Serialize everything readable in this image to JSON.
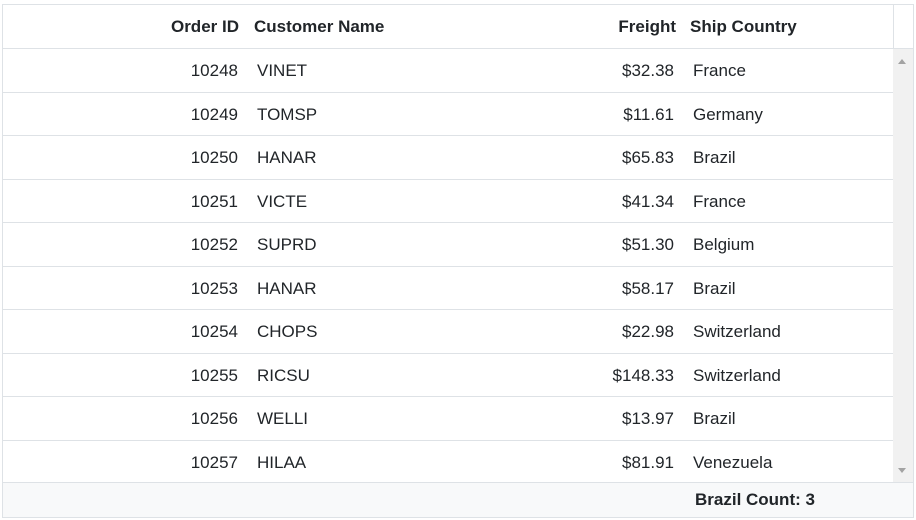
{
  "grid": {
    "columns": {
      "order_id": "Order ID",
      "customer_name": "Customer Name",
      "freight": "Freight",
      "ship_country": "Ship Country"
    },
    "rows": [
      {
        "order_id": "10248",
        "customer": "VINET",
        "freight": "$32.38",
        "country": "France"
      },
      {
        "order_id": "10249",
        "customer": "TOMSP",
        "freight": "$11.61",
        "country": "Germany"
      },
      {
        "order_id": "10250",
        "customer": "HANAR",
        "freight": "$65.83",
        "country": "Brazil"
      },
      {
        "order_id": "10251",
        "customer": "VICTE",
        "freight": "$41.34",
        "country": "France"
      },
      {
        "order_id": "10252",
        "customer": "SUPRD",
        "freight": "$51.30",
        "country": "Belgium"
      },
      {
        "order_id": "10253",
        "customer": "HANAR",
        "freight": "$58.17",
        "country": "Brazil"
      },
      {
        "order_id": "10254",
        "customer": "CHOPS",
        "freight": "$22.98",
        "country": "Switzerland"
      },
      {
        "order_id": "10255",
        "customer": "RICSU",
        "freight": "$148.33",
        "country": "Switzerland"
      },
      {
        "order_id": "10256",
        "customer": "WELLI",
        "freight": "$13.97",
        "country": "Brazil"
      },
      {
        "order_id": "10257",
        "customer": "HILAA",
        "freight": "$81.91",
        "country": "Venezuela"
      }
    ],
    "footer": {
      "summary": "Brazil Count: 3"
    }
  },
  "icons": {
    "scroll_up": "scroll-up-arrow-icon",
    "scroll_down": "scroll-down-arrow-icon"
  },
  "colors": {
    "border": "#dee2e6",
    "footer_bg": "#f8f9fa",
    "text": "#212529",
    "scrollbar_track": "#f1f1f1"
  }
}
